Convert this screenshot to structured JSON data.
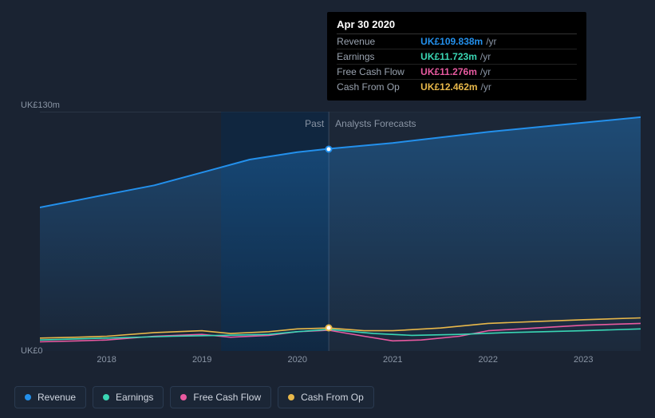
{
  "chart": {
    "type": "area-line",
    "background_color": "#1a2332",
    "grid_color": "#2a3545",
    "text_color": "#8a95a5",
    "title_fontsize": 12,
    "label_fontsize": 11,
    "ylim": [
      0,
      130
    ],
    "y_axis_top_label": "UK£130m",
    "y_axis_bottom_label": "UK£0",
    "x_axis": {
      "ticks": [
        2018,
        2019,
        2020,
        2021,
        2022,
        2023
      ],
      "domain_min": 2017.3,
      "domain_max": 2023.6
    },
    "past_forecast_split_x": 2020.33,
    "regions": {
      "past_label": "Past",
      "forecast_label": "Analysts Forecasts",
      "highlight_band": {
        "x_start": 2019.2,
        "x_end": 2020.33,
        "fill": "#0a2a4a",
        "opacity": 0.55
      },
      "forecast_band_fill": "#1e2a3a",
      "forecast_band_opacity": 0.6,
      "split_line_color": "#3a4a60"
    },
    "series": [
      {
        "name": "Revenue",
        "color": "#2390ec",
        "fill": true,
        "fill_opacity_top": 0.35,
        "fill_opacity_bottom": 0.02,
        "line_width": 2,
        "points": [
          {
            "x": 2017.3,
            "y": 78
          },
          {
            "x": 2017.7,
            "y": 82
          },
          {
            "x": 2018.0,
            "y": 85
          },
          {
            "x": 2018.5,
            "y": 90
          },
          {
            "x": 2019.0,
            "y": 97
          },
          {
            "x": 2019.5,
            "y": 104
          },
          {
            "x": 2020.0,
            "y": 108
          },
          {
            "x": 2020.33,
            "y": 109.838
          },
          {
            "x": 2021.0,
            "y": 113
          },
          {
            "x": 2022.0,
            "y": 119
          },
          {
            "x": 2023.0,
            "y": 124
          },
          {
            "x": 2023.6,
            "y": 127
          }
        ]
      },
      {
        "name": "Cash From Op",
        "color": "#e8b84a",
        "fill": false,
        "line_width": 1.6,
        "points": [
          {
            "x": 2017.3,
            "y": 7
          },
          {
            "x": 2017.7,
            "y": 7.5
          },
          {
            "x": 2018.0,
            "y": 8
          },
          {
            "x": 2018.5,
            "y": 10
          },
          {
            "x": 2019.0,
            "y": 11
          },
          {
            "x": 2019.3,
            "y": 9.5
          },
          {
            "x": 2019.7,
            "y": 10.5
          },
          {
            "x": 2020.0,
            "y": 12
          },
          {
            "x": 2020.33,
            "y": 12.462
          },
          {
            "x": 2020.7,
            "y": 11
          },
          {
            "x": 2021.0,
            "y": 11
          },
          {
            "x": 2021.5,
            "y": 12.5
          },
          {
            "x": 2022.0,
            "y": 15
          },
          {
            "x": 2022.5,
            "y": 16
          },
          {
            "x": 2023.0,
            "y": 17
          },
          {
            "x": 2023.6,
            "y": 18
          }
        ]
      },
      {
        "name": "Free Cash Flow",
        "color": "#e85aa0",
        "fill": false,
        "line_width": 1.6,
        "points": [
          {
            "x": 2017.3,
            "y": 5
          },
          {
            "x": 2017.7,
            "y": 5.5
          },
          {
            "x": 2018.0,
            "y": 6
          },
          {
            "x": 2018.5,
            "y": 8
          },
          {
            "x": 2019.0,
            "y": 9
          },
          {
            "x": 2019.3,
            "y": 7.5
          },
          {
            "x": 2019.7,
            "y": 8.5
          },
          {
            "x": 2020.0,
            "y": 10.5
          },
          {
            "x": 2020.33,
            "y": 11.276
          },
          {
            "x": 2020.7,
            "y": 8
          },
          {
            "x": 2021.0,
            "y": 5.5
          },
          {
            "x": 2021.3,
            "y": 6
          },
          {
            "x": 2021.7,
            "y": 8
          },
          {
            "x": 2022.0,
            "y": 11
          },
          {
            "x": 2022.5,
            "y": 12.5
          },
          {
            "x": 2023.0,
            "y": 14
          },
          {
            "x": 2023.6,
            "y": 15
          }
        ]
      },
      {
        "name": "Earnings",
        "color": "#3ad6b4",
        "fill": false,
        "line_width": 1.6,
        "points": [
          {
            "x": 2017.3,
            "y": 6
          },
          {
            "x": 2018.0,
            "y": 7
          },
          {
            "x": 2018.7,
            "y": 8
          },
          {
            "x": 2019.2,
            "y": 8.5
          },
          {
            "x": 2019.7,
            "y": 9
          },
          {
            "x": 2020.0,
            "y": 10.5
          },
          {
            "x": 2020.33,
            "y": 11.723
          },
          {
            "x": 2020.8,
            "y": 9.5
          },
          {
            "x": 2021.2,
            "y": 8.5
          },
          {
            "x": 2021.7,
            "y": 9
          },
          {
            "x": 2022.2,
            "y": 10
          },
          {
            "x": 2023.0,
            "y": 11
          },
          {
            "x": 2023.6,
            "y": 12
          }
        ]
      }
    ],
    "tooltip": {
      "x": 2020.33,
      "date_label": "Apr 30 2020",
      "unit": "/yr",
      "rows": [
        {
          "label": "Revenue",
          "value": "UK£109.838m",
          "color": "#2390ec"
        },
        {
          "label": "Earnings",
          "value": "UK£11.723m",
          "color": "#3ad6b4"
        },
        {
          "label": "Free Cash Flow",
          "value": "UK£11.276m",
          "color": "#e85aa0"
        },
        {
          "label": "Cash From Op",
          "value": "UK£12.462m",
          "color": "#e8b84a"
        }
      ],
      "markers": [
        {
          "series": "Revenue",
          "border_color": "#2390ec"
        },
        {
          "series": "Other",
          "border_color": "#e8b84a"
        }
      ]
    },
    "legend": [
      {
        "label": "Revenue",
        "color": "#2390ec"
      },
      {
        "label": "Earnings",
        "color": "#3ad6b4"
      },
      {
        "label": "Free Cash Flow",
        "color": "#e85aa0"
      },
      {
        "label": "Cash From Op",
        "color": "#e8b84a"
      }
    ]
  }
}
